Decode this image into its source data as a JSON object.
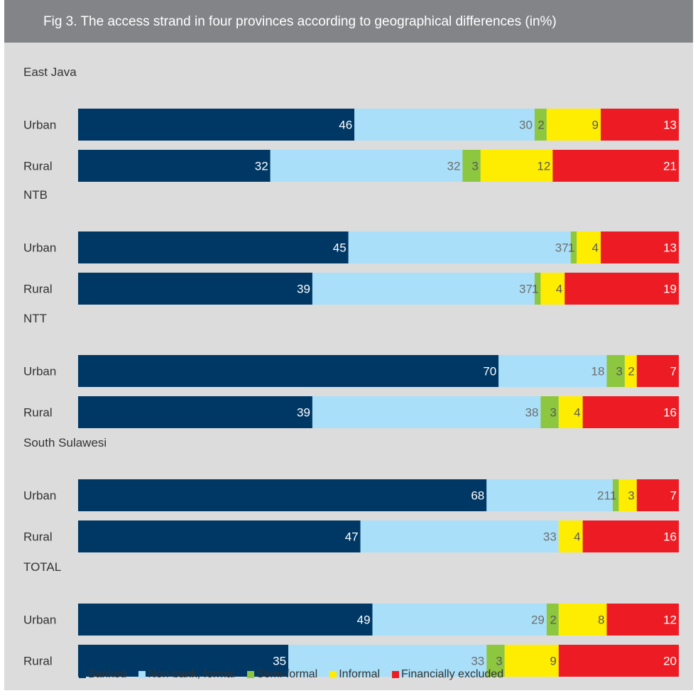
{
  "chart_data": {
    "type": "bar",
    "orientation": "horizontal",
    "stacked": true,
    "title": "Fig 3. The access strand in four provinces according to geographical differences (in%)",
    "groups": [
      {
        "name": "East Java",
        "rows": [
          {
            "label": "Urban",
            "values": [
              46,
              30,
              2,
              9,
              13
            ]
          },
          {
            "label": "Rural",
            "values": [
              32,
              32,
              3,
              12,
              21
            ]
          }
        ]
      },
      {
        "name": "NTB",
        "rows": [
          {
            "label": "Urban",
            "values": [
              45,
              37,
              1,
              4,
              13
            ]
          },
          {
            "label": "Rural",
            "values": [
              39,
              37,
              1,
              4,
              19
            ]
          }
        ]
      },
      {
        "name": "NTT",
        "rows": [
          {
            "label": "Urban",
            "values": [
              70,
              18,
              3,
              2,
              7
            ]
          },
          {
            "label": "Rural",
            "values": [
              39,
              38,
              3,
              4,
              16
            ]
          }
        ]
      },
      {
        "name": "South Sulawesi",
        "rows": [
          {
            "label": "Urban",
            "values": [
              68,
              21,
              1,
              3,
              7
            ]
          },
          {
            "label": "Rural",
            "values": [
              47,
              33,
              0,
              4,
              16
            ]
          }
        ]
      },
      {
        "name": "TOTAL",
        "rows": [
          {
            "label": "Urban",
            "values": [
              49,
              29,
              2,
              8,
              12
            ]
          },
          {
            "label": "Rural",
            "values": [
              35,
              33,
              3,
              9,
              20
            ]
          }
        ]
      }
    ],
    "series": [
      {
        "name": "Banked",
        "color": "#003865",
        "label_color": "#ffffff"
      },
      {
        "name": "Non-bank, formal",
        "color": "#a9dff8",
        "label_color": "#6e6e6e"
      },
      {
        "name": "Semi-formal",
        "color": "#8dc63f",
        "label_color": "#5a5a5a"
      },
      {
        "name": "Informal",
        "color": "#ffed00",
        "label_color": "#5a5a5a"
      },
      {
        "name": "Financially excluded",
        "color": "#ed1c24",
        "label_color": "#ffffff"
      }
    ],
    "xlim": [
      0,
      100
    ],
    "legend_position": "bottom"
  }
}
